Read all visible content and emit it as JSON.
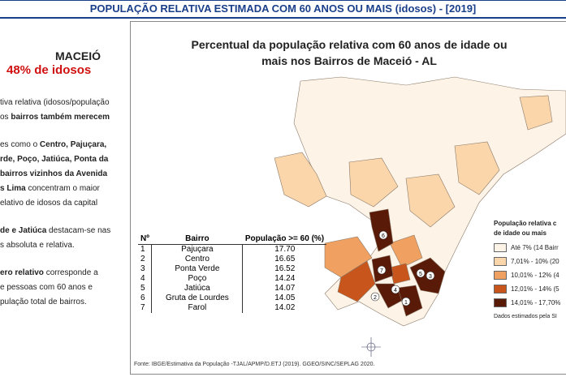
{
  "header": {
    "title": "POPULAÇÃO RELATIVA ESTIMADA COM 60 ANOS OU MAIS (idosos) - [2019]"
  },
  "left_panel": {
    "heading": "MACEIÓ",
    "highlight": "48% de idosos",
    "paragraphs": [
      [
        [
          {
            "text": "tiva relativa (idosos/população"
          }
        ],
        [
          {
            "text": "os "
          },
          {
            "text": "bairros também merecem",
            "bold": true
          }
        ]
      ],
      [
        [
          {
            "text": "es como o "
          },
          {
            "text": "Centro, Pajuçara,",
            "bold": true
          }
        ],
        [
          {
            "text": "rde, Poço, Jatiúca, Ponta da",
            "bold": true
          }
        ],
        [
          {
            "text": "bairros vizinhos da Avenida",
            "bold": true
          }
        ],
        [
          {
            "text": "s Lima",
            "bold": true
          },
          {
            "text": " concentram o maior"
          }
        ],
        [
          {
            "text": "elativo de idosos da capital"
          }
        ]
      ],
      [
        [
          {
            "text": "de e Jatiúca",
            "bold": true
          },
          {
            "text": " destacam-se nas"
          }
        ],
        [
          {
            "text": "s absoluta e relativa."
          }
        ]
      ],
      [
        [
          {
            "text": "ero relativo",
            "bold": true
          },
          {
            "text": " corresponde a"
          }
        ],
        [
          {
            "text": "e pessoas com 60 anos e"
          }
        ],
        [
          {
            "text": "pulação total de bairros."
          }
        ]
      ]
    ]
  },
  "map": {
    "title": [
      "Percentual da população relativa com 60 anos de idade ou",
      "mais nos Bairros de Maceió - AL"
    ],
    "table": {
      "header": [
        "Nº",
        "Bairro",
        "População >= 60 (%)"
      ],
      "rows": [
        [
          "1",
          "Pajuçara",
          "17.70"
        ],
        [
          "2",
          "Centro",
          "16.65"
        ],
        [
          "3",
          "Ponta Verde",
          "16.52"
        ],
        [
          "4",
          "Poço",
          "14.24"
        ],
        [
          "5",
          "Jatiúca",
          "14.07"
        ],
        [
          "6",
          "Gruta de Lourdes",
          "14.05"
        ],
        [
          "7",
          "Farol",
          "14.02"
        ]
      ]
    },
    "legend": {
      "title": [
        "População relativa c",
        "de idade ou mais"
      ],
      "items": [
        {
          "label": "Até 7% (14 Bairr",
          "color": "#fdf3e6"
        },
        {
          "label": "7,01% - 10% (20",
          "color": "#fbd6aa"
        },
        {
          "label": "10,01% - 12% (4",
          "color": "#f0a060"
        },
        {
          "label": "12,01% - 14% (5",
          "color": "#c8561c"
        },
        {
          "label": "14,01% - 17,70%",
          "color": "#5a1a08"
        }
      ],
      "note": "Dados estimados pela SI"
    },
    "source": "Fonte: IBGE/Estimativa da População -TJAL/APMP/D.ETJ (2019). GGEO/SINC/SEPLAG 2020."
  }
}
